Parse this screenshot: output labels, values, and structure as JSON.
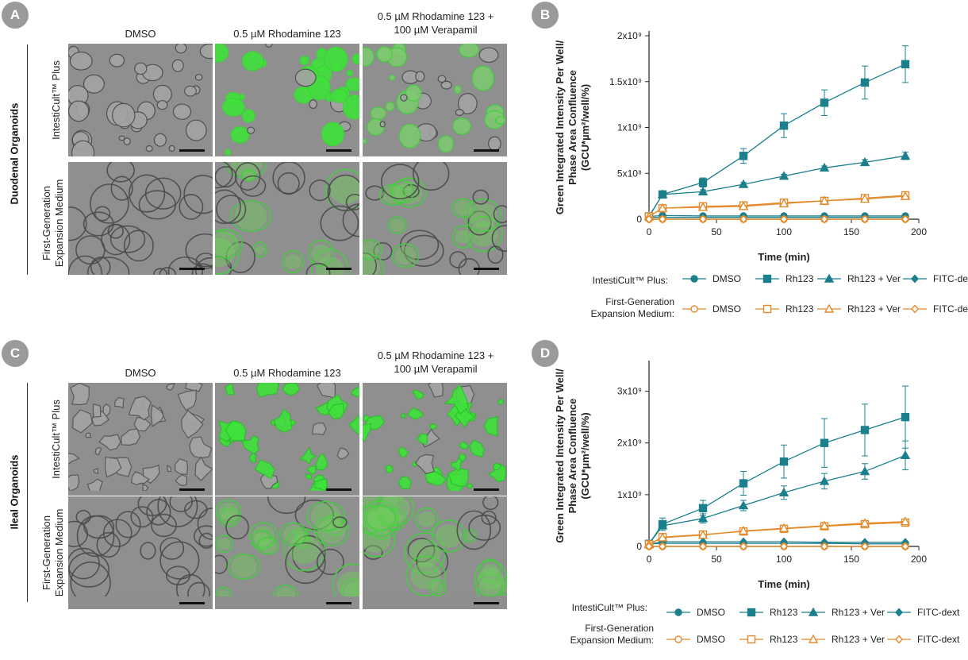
{
  "panels": {
    "A": {
      "badge": "A",
      "side_label": "Duodenal Organoids",
      "columns": [
        "DMSO",
        "0.5 µM Rhodamine 123",
        "0.5 µM Rhodamine 123 +\n100 µM Verapamil"
      ],
      "rows": [
        "IntestiCult™ Plus",
        "First-Generation\nExpansion Medium"
      ]
    },
    "C": {
      "badge": "C",
      "side_label": "Ileal Organoids",
      "columns": [
        "DMSO",
        "0.5 µM Rhodamine 123",
        "0.5 µM Rhodamine 123 +\n100 µM Verapamil"
      ],
      "rows": [
        "IntestiCult™ Plus",
        "First-Generation\nExpansion Medium"
      ]
    },
    "B": {
      "badge": "B"
    },
    "D": {
      "badge": "D"
    }
  },
  "legend": {
    "group1": "IntestiCult™ Plus:",
    "group2_line1": "First-Generation",
    "group2_line2": "Expansion Medium:",
    "items": [
      "DMSO",
      "Rh123",
      "Rh123 + Ver",
      "FITC-dext"
    ]
  },
  "colors": {
    "teal": "#1b7f8c",
    "orange": "#e38a2b",
    "green": "#38d83a"
  },
  "chart_data": [
    {
      "type": "line",
      "panel": "B",
      "xlabel": "Time (min)",
      "ylabel": "Green Integrated Intensity Per Well/\nPhase Area Confluence\n(GCU*µm²/well/%)",
      "xlim": [
        0,
        200
      ],
      "ylim": [
        0,
        2000000000
      ],
      "xticks": [
        0,
        50,
        100,
        150,
        200
      ],
      "yticks": [
        0,
        500000000,
        1000000000,
        1500000000,
        2000000000
      ],
      "ytick_labels": [
        "0",
        "5x10⁸",
        "1x10⁹",
        "1.5x10⁹",
        "2x10⁹"
      ],
      "x": [
        0,
        10,
        40,
        70,
        100,
        130,
        160,
        190
      ],
      "series": [
        {
          "name": "IntestiCult™ Plus DMSO",
          "marker": "circle",
          "color": "teal",
          "filled": true,
          "values": [
            30000000,
            40000000,
            35000000,
            35000000,
            35000000,
            35000000,
            35000000,
            35000000
          ]
        },
        {
          "name": "IntestiCult™ Plus Rh123",
          "marker": "square",
          "color": "teal",
          "filled": true,
          "values": [
            30000000,
            270000000,
            400000000,
            690000000,
            1020000000,
            1270000000,
            1490000000,
            1690000000
          ],
          "err": [
            0,
            20000000,
            50000000,
            80000000,
            130000000,
            140000000,
            180000000,
            200000000
          ]
        },
        {
          "name": "IntestiCult™ Plus Rh123 + Ver",
          "marker": "triangle",
          "color": "teal",
          "filled": true,
          "values": [
            30000000,
            270000000,
            300000000,
            380000000,
            470000000,
            560000000,
            620000000,
            690000000
          ],
          "err": [
            0,
            10000000,
            20000000,
            20000000,
            20000000,
            20000000,
            30000000,
            40000000
          ]
        },
        {
          "name": "IntestiCult™ Plus FITC-dext",
          "marker": "diamond",
          "color": "teal",
          "filled": true,
          "values": [
            20000000,
            20000000,
            20000000,
            20000000,
            20000000,
            20000000,
            20000000,
            20000000
          ]
        },
        {
          "name": "First-Generation DMSO",
          "marker": "circle",
          "color": "orange",
          "filled": false,
          "values": [
            0,
            0,
            0,
            0,
            0,
            0,
            0,
            0
          ]
        },
        {
          "name": "First-Generation Rh123",
          "marker": "square",
          "color": "orange",
          "filled": false,
          "values": [
            30000000,
            120000000,
            140000000,
            150000000,
            180000000,
            200000000,
            230000000,
            260000000
          ],
          "err": [
            0,
            10000000,
            10000000,
            10000000,
            15000000,
            15000000,
            20000000,
            40000000
          ]
        },
        {
          "name": "First-Generation Rh123 + Ver",
          "marker": "triangle",
          "color": "orange",
          "filled": false,
          "values": [
            30000000,
            120000000,
            130000000,
            140000000,
            170000000,
            200000000,
            220000000,
            250000000
          ]
        },
        {
          "name": "First-Generation FITC-dext",
          "marker": "diamond",
          "color": "orange",
          "filled": false,
          "values": [
            0,
            0,
            0,
            0,
            0,
            0,
            0,
            0
          ]
        }
      ]
    },
    {
      "type": "line",
      "panel": "D",
      "xlabel": "Time (min)",
      "ylabel": "Green Integrated Intensity Per Well/\nPhase Area Confluence\n(GCU*µm²/well/%)",
      "xlim": [
        0,
        200
      ],
      "ylim": [
        0,
        3500000000
      ],
      "xticks": [
        0,
        50,
        100,
        150,
        200
      ],
      "yticks": [
        0,
        1000000000,
        2000000000,
        3000000000
      ],
      "ytick_labels": [
        "0",
        "1x10⁹",
        "2x10⁹",
        "3x10⁹"
      ],
      "x": [
        0,
        10,
        40,
        70,
        100,
        130,
        160,
        190
      ],
      "series": [
        {
          "name": "IntestiCult™ Plus DMSO",
          "marker": "circle",
          "color": "teal",
          "filled": true,
          "values": [
            50000000,
            60000000,
            60000000,
            60000000,
            60000000,
            60000000,
            50000000,
            50000000
          ]
        },
        {
          "name": "IntestiCult™ Plus Rh123",
          "marker": "square",
          "color": "teal",
          "filled": true,
          "values": [
            50000000,
            430000000,
            740000000,
            1220000000,
            1640000000,
            2000000000,
            2250000000,
            2500000000
          ],
          "err": [
            0,
            120000000,
            150000000,
            230000000,
            320000000,
            470000000,
            500000000,
            600000000
          ]
        },
        {
          "name": "IntestiCult™ Plus Rh123 + Ver",
          "marker": "triangle",
          "color": "teal",
          "filled": true,
          "values": [
            50000000,
            400000000,
            540000000,
            790000000,
            1040000000,
            1260000000,
            1450000000,
            1760000000
          ],
          "err": [
            0,
            60000000,
            90000000,
            100000000,
            130000000,
            150000000,
            150000000,
            280000000
          ]
        },
        {
          "name": "IntestiCult™ Plus FITC-dext",
          "marker": "diamond",
          "color": "teal",
          "filled": true,
          "values": [
            40000000,
            90000000,
            90000000,
            90000000,
            90000000,
            80000000,
            80000000,
            80000000
          ]
        },
        {
          "name": "First-Generation DMSO",
          "marker": "circle",
          "color": "orange",
          "filled": false,
          "values": [
            0,
            0,
            0,
            0,
            0,
            0,
            0,
            0
          ]
        },
        {
          "name": "First-Generation Rh123",
          "marker": "square",
          "color": "orange",
          "filled": false,
          "values": [
            40000000,
            180000000,
            230000000,
            290000000,
            340000000,
            390000000,
            430000000,
            460000000
          ],
          "err": [
            0,
            20000000,
            20000000,
            30000000,
            30000000,
            30000000,
            40000000,
            40000000
          ]
        },
        {
          "name": "First-Generation Rh123 + Ver",
          "marker": "triangle",
          "color": "orange",
          "filled": false,
          "values": [
            40000000,
            170000000,
            220000000,
            300000000,
            350000000,
            400000000,
            450000000,
            480000000
          ]
        },
        {
          "name": "First-Generation FITC-dext",
          "marker": "diamond",
          "color": "orange",
          "filled": false,
          "values": [
            0,
            0,
            0,
            0,
            0,
            0,
            0,
            0
          ]
        }
      ]
    }
  ]
}
